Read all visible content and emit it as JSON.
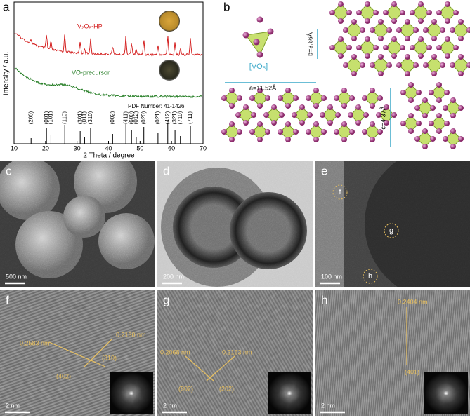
{
  "chart_data": {
    "type": "xrd",
    "letter": "a",
    "x_label": "2 Theta / degree",
    "y_label": "Intensity / a.u.",
    "xlim": [
      10,
      70
    ],
    "xticks": [
      10,
      20,
      30,
      40,
      50,
      60,
      70
    ],
    "series": [
      {
        "name": "V₂O₅-HP",
        "color": "#d42020"
      },
      {
        "name": "VO-precursor",
        "color": "#1f7a1f"
      }
    ],
    "reference": {
      "label": "PDF Number: 41-1426",
      "color": "#000000",
      "peaks": [
        {
          "x": 15.4,
          "label": "(200)"
        },
        {
          "x": 20.3,
          "label": "(001)"
        },
        {
          "x": 21.7,
          "label": "(101)"
        },
        {
          "x": 26.1,
          "label": "(110)"
        },
        {
          "x": 31.0,
          "label": "(301)"
        },
        {
          "x": 32.4,
          "label": "(011)"
        },
        {
          "x": 34.3,
          "label": "(310)"
        },
        {
          "x": 41.3,
          "label": "(002)"
        },
        {
          "x": 45.5,
          "label": "(411)"
        },
        {
          "x": 47.3,
          "label": "(600)"
        },
        {
          "x": 48.8,
          "label": "(012)"
        },
        {
          "x": 51.2,
          "label": "(020)"
        },
        {
          "x": 55.7,
          "label": "(021)"
        },
        {
          "x": 58.8,
          "label": "(412)"
        },
        {
          "x": 61.1,
          "label": "(321)"
        },
        {
          "x": 62.8,
          "label": "(710)"
        },
        {
          "x": 66.0,
          "label": "(711)"
        }
      ]
    }
  },
  "structure": {
    "letter": "b",
    "polyhedron": "[VO₅]",
    "a": "a=11.52Å",
    "b": "b=3.66Å",
    "c": "c=4.37Å"
  },
  "panels": [
    {
      "letter": "c",
      "scale_bar": "500 nm"
    },
    {
      "letter": "d",
      "scale_bar": "200 nm"
    },
    {
      "letter": "e",
      "scale_bar": "100 nm",
      "markers": [
        "f",
        "g",
        "h"
      ]
    },
    {
      "letter": "f",
      "scale_bar": "2 nm",
      "spacings": [
        "0.2583 nm",
        "0.2130 nm"
      ],
      "planes": [
        "(402)",
        "(310)"
      ]
    },
    {
      "letter": "g",
      "scale_bar": "2 nm",
      "spacings": [
        "0.2068 nm",
        "0.2163 nm"
      ],
      "planes": [
        "(802)",
        "(202)"
      ]
    },
    {
      "letter": "h",
      "scale_bar": "2 nm",
      "spacings": [
        "0.2404 nm"
      ],
      "planes": [
        "(401)"
      ]
    }
  ]
}
